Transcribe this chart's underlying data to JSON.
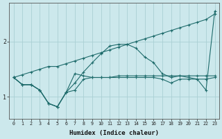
{
  "xlabel": "Humidex (Indice chaleur)",
  "bg_color": "#cce8ec",
  "line_color": "#1e6b6b",
  "grid_color": "#aacfd4",
  "xlim": [
    -0.5,
    23.5
  ],
  "ylim": [
    0.6,
    2.7
  ],
  "yticks": [
    1,
    2
  ],
  "xticks": [
    0,
    1,
    2,
    3,
    4,
    5,
    6,
    7,
    8,
    9,
    10,
    11,
    12,
    13,
    14,
    15,
    16,
    17,
    18,
    19,
    20,
    21,
    22,
    23
  ],
  "lines": [
    {
      "x": [
        0,
        1,
        2,
        3,
        4,
        5,
        6,
        7,
        8,
        9,
        10,
        11,
        12,
        13,
        14,
        15,
        16,
        17,
        18,
        19,
        20,
        21,
        22,
        23
      ],
      "y": [
        1.35,
        1.4,
        1.45,
        1.5,
        1.55,
        1.55,
        1.6,
        1.65,
        1.7,
        1.75,
        1.8,
        1.85,
        1.9,
        1.95,
        2.0,
        2.05,
        2.1,
        2.15,
        2.2,
        2.25,
        2.3,
        2.35,
        2.4,
        2.5
      ]
    },
    {
      "x": [
        0,
        1,
        2,
        3,
        4,
        5,
        6,
        7,
        8,
        9,
        10,
        11,
        12,
        13,
        14,
        15,
        16,
        17,
        18,
        19,
        20,
        21,
        22,
        23
      ],
      "y": [
        1.35,
        1.22,
        1.22,
        1.12,
        0.88,
        0.82,
        1.08,
        1.25,
        1.45,
        1.62,
        1.78,
        1.92,
        1.95,
        1.95,
        1.88,
        1.72,
        1.62,
        1.42,
        1.35,
        1.38,
        1.35,
        1.32,
        1.32,
        1.35
      ]
    },
    {
      "x": [
        0,
        1,
        2,
        3,
        4,
        5,
        6,
        7,
        8,
        9,
        10,
        11,
        12,
        13,
        14,
        15,
        16,
        17,
        18,
        19,
        20,
        21,
        22,
        23
      ],
      "y": [
        1.35,
        1.22,
        1.22,
        1.12,
        0.88,
        0.82,
        1.08,
        1.42,
        1.38,
        1.35,
        1.35,
        1.35,
        1.38,
        1.38,
        1.38,
        1.38,
        1.38,
        1.38,
        1.38,
        1.38,
        1.38,
        1.38,
        1.38,
        1.38
      ]
    },
    {
      "x": [
        0,
        1,
        2,
        3,
        4,
        5,
        6,
        7,
        8,
        9,
        10,
        11,
        12,
        13,
        14,
        15,
        16,
        17,
        18,
        19,
        20,
        21,
        22,
        23
      ],
      "y": [
        1.35,
        1.22,
        1.22,
        1.12,
        0.88,
        0.82,
        1.08,
        1.12,
        1.32,
        1.35,
        1.35,
        1.35,
        1.35,
        1.35,
        1.35,
        1.35,
        1.35,
        1.32,
        1.25,
        1.32,
        1.32,
        1.32,
        1.12,
        2.55
      ]
    }
  ]
}
